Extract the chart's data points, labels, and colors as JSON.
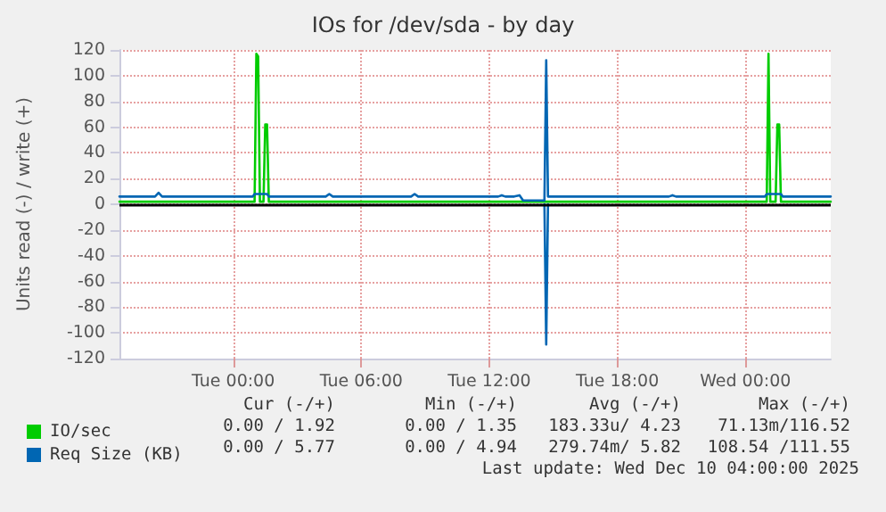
{
  "chart_data": {
    "type": "line",
    "title": "IOs for /dev/sda - by day",
    "ylabel": "Units read (-) / write (+)",
    "xlim": [
      "2025-12-08T18:40",
      "2025-12-10T04:00"
    ],
    "xticks": [
      {
        "value": "2025-12-09T00:00",
        "label": "Tue 00:00"
      },
      {
        "value": "2025-12-09T06:00",
        "label": "Tue 06:00"
      },
      {
        "value": "2025-12-09T12:00",
        "label": "Tue 12:00"
      },
      {
        "value": "2025-12-09T18:00",
        "label": "Tue 18:00"
      },
      {
        "value": "2025-12-10T00:00",
        "label": "Wed 00:00"
      }
    ],
    "ylim": [
      -120,
      120
    ],
    "yticks": [
      -120,
      -100,
      -80,
      -60,
      -40,
      -20,
      0,
      20,
      40,
      60,
      80,
      100,
      120
    ],
    "grid": true,
    "legend": "bottom left",
    "marker": "none",
    "line_style": "solid",
    "ref_lines": [
      {
        "axis": "y",
        "value": 0,
        "color": "#000000"
      }
    ],
    "series": [
      {
        "name": "IO/sec",
        "color": "#00cc00",
        "x": [
          "2025-12-08T18:40",
          "2025-12-09T01:00",
          "2025-12-09T01:05",
          "2025-12-09T01:10",
          "2025-12-09T01:15",
          "2025-12-09T01:25",
          "2025-12-09T01:30",
          "2025-12-09T01:35",
          "2025-12-09T01:40",
          "2025-12-10T01:00",
          "2025-12-10T01:05",
          "2025-12-10T01:10",
          "2025-12-10T01:25",
          "2025-12-10T01:30",
          "2025-12-10T01:35",
          "2025-12-10T01:40",
          "2025-12-10T04:00"
        ],
        "values": [
          2,
          2,
          117,
          115,
          2,
          2,
          62,
          62,
          2,
          2,
          117,
          2,
          2,
          62,
          62,
          2,
          2
        ]
      },
      {
        "name": "Req Size (KB)",
        "color": "#0066b3",
        "x": [
          "2025-12-08T18:40",
          "2025-12-08T20:20",
          "2025-12-08T20:30",
          "2025-12-08T20:40",
          "2025-12-09T00:55",
          "2025-12-09T01:00",
          "2025-12-09T01:35",
          "2025-12-09T01:40",
          "2025-12-09T04:20",
          "2025-12-09T04:30",
          "2025-12-09T04:40",
          "2025-12-09T08:20",
          "2025-12-09T08:30",
          "2025-12-09T08:40",
          "2025-12-09T12:25",
          "2025-12-09T12:35",
          "2025-12-09T12:45",
          "2025-12-09T13:10",
          "2025-12-09T13:25",
          "2025-12-09T13:35",
          "2025-12-09T14:35",
          "2025-12-09T14:40",
          "2025-12-09T14:45",
          "2025-12-09T20:25",
          "2025-12-09T20:35",
          "2025-12-09T20:45",
          "2025-12-10T00:55",
          "2025-12-10T01:00",
          "2025-12-10T01:40",
          "2025-12-10T01:45",
          "2025-12-10T04:00"
        ],
        "values": [
          6,
          6,
          9,
          6,
          6,
          8,
          8,
          6,
          6,
          8,
          6,
          6,
          8,
          6,
          6,
          7,
          6,
          6,
          7,
          3,
          3,
          112,
          6,
          6,
          7,
          6,
          6,
          8,
          8,
          6,
          6
        ]
      },
      {
        "color": "#0066b3",
        "x": [
          "2025-12-09T14:35",
          "2025-12-09T14:40",
          "2025-12-09T14:45"
        ],
        "values": [
          0,
          -109,
          0
        ]
      }
    ],
    "annotations": [
      "Cur (-/+)",
      "Min (-/+)",
      "Avg (-/+)",
      "Max (-/+)",
      "0.00 / 1.92",
      "0.00 / 1.35",
      "183.33u/ 4.23",
      "71.13m/116.52",
      "0.00 / 5.77",
      "0.00 / 4.94",
      "279.74m/ 5.82",
      "108.54 /111.55",
      "Last update: Wed Dec 10 04:00:00 2025"
    ]
  }
}
